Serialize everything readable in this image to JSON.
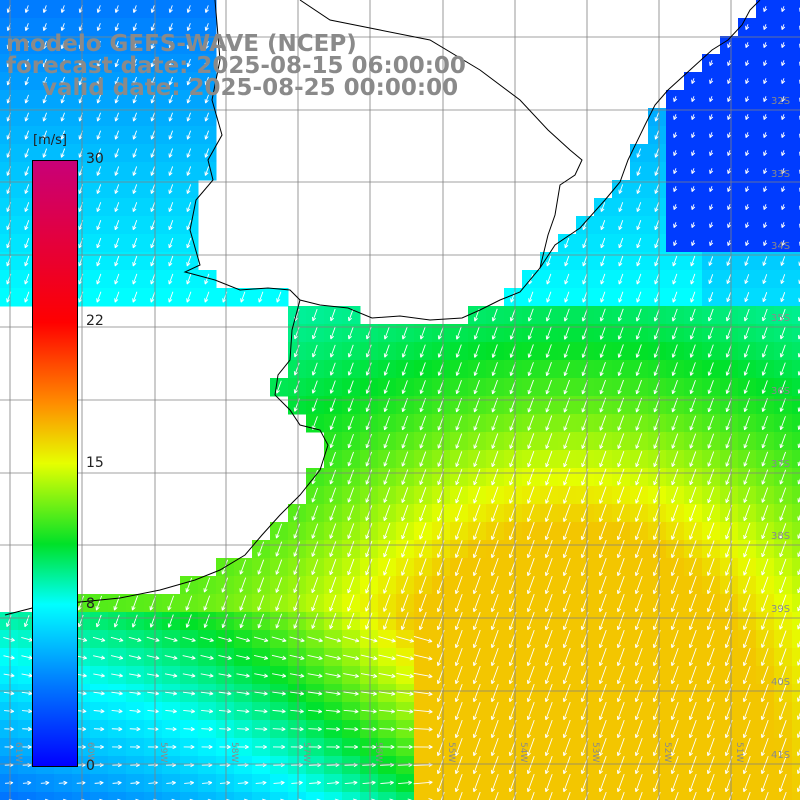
{
  "title": {
    "line1": "modelo GEFS-WAVE (NCEP)",
    "line2": "forecast date: 2025-08-15 06:00:00",
    "line3": "valid date: 2025-08-25 00:00:00"
  },
  "colorbar": {
    "units": "[m/s]",
    "ticks": [
      "30",
      "22",
      "15",
      "8",
      "0"
    ],
    "tick_values": [
      30,
      22,
      15,
      8,
      0
    ],
    "range": [
      0,
      30
    ]
  },
  "lat_labels": [
    "32S",
    "33S",
    "34S",
    "35S",
    "36S",
    "37S",
    "38S",
    "39S",
    "40S",
    "41S"
  ],
  "lon_labels": [
    "61W",
    "60W",
    "59W",
    "58W",
    "57W",
    "56W",
    "55W",
    "54W",
    "53W",
    "52W",
    "51W"
  ],
  "colors": {
    "land": "#ffffff",
    "coast": "#000000",
    "grid": "#808080",
    "title": "#8a8a8a",
    "arrows": "#ffffff"
  }
}
